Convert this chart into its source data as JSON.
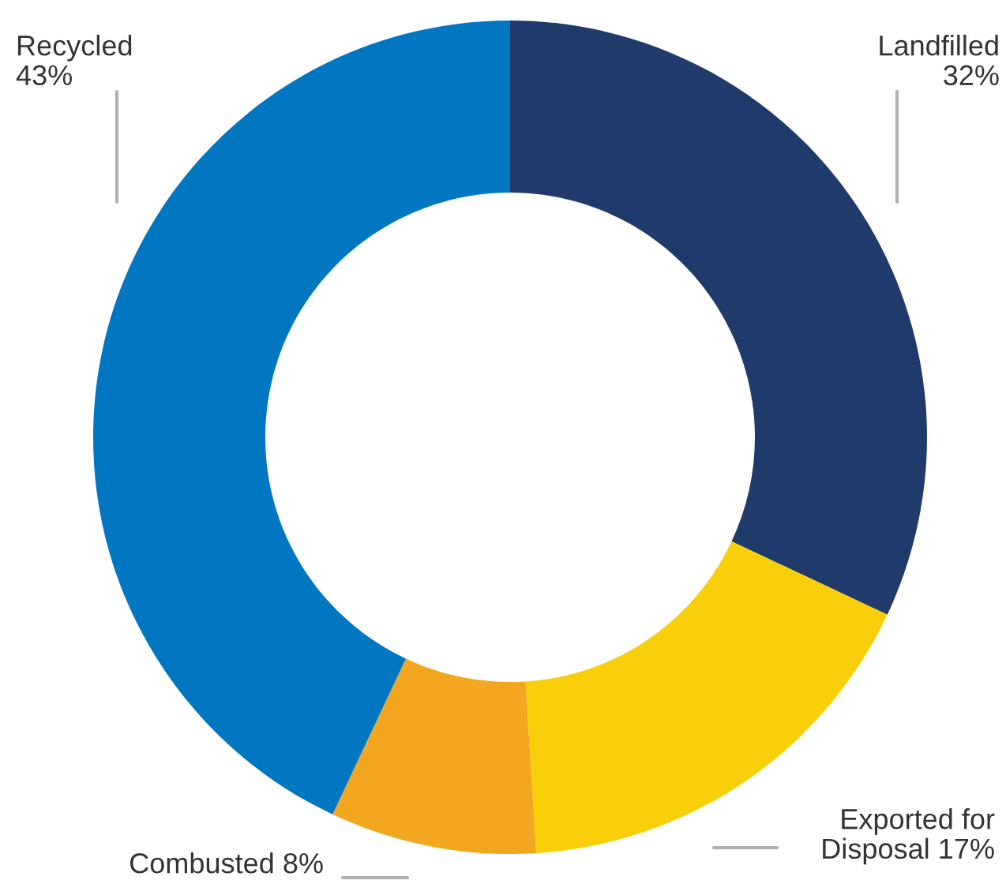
{
  "chart_data": {
    "type": "donut",
    "categories": [
      "Landfilled",
      "Exported for Disposal",
      "Combusted",
      "Recycled"
    ],
    "values": [
      32,
      17,
      8,
      43
    ],
    "colors": [
      "#1f3a6b",
      "#f9cf0a",
      "#f3a61f",
      "#0077c0"
    ],
    "value_labels": [
      "32%",
      "17%",
      "8%",
      "43%"
    ],
    "legend": false
  }
}
